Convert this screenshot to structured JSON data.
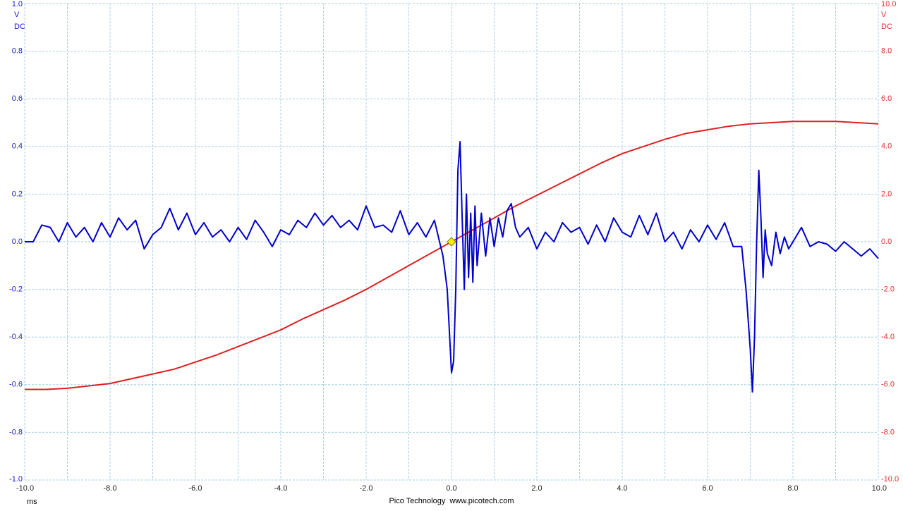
{
  "chart_data": {
    "type": "line",
    "x_unit": "ms",
    "y_unit": "V",
    "y_coupling": "DC",
    "y2_unit": "V",
    "y2_coupling": "DC",
    "footer": "Pico Technology  www.picotech.com",
    "grid": true,
    "xlim": [
      -10,
      10
    ],
    "xticks": [
      {
        "value": -10,
        "label": "-10.0"
      },
      {
        "value": -8,
        "label": "-8.0"
      },
      {
        "value": -6,
        "label": "-6.0"
      },
      {
        "value": -4,
        "label": "-4.0"
      },
      {
        "value": -2,
        "label": "-2.0"
      },
      {
        "value": 0,
        "label": "0.0"
      },
      {
        "value": 2,
        "label": "2.0"
      },
      {
        "value": 4,
        "label": "4.0"
      },
      {
        "value": 6,
        "label": "6.0"
      },
      {
        "value": 8,
        "label": "8.0"
      },
      {
        "value": 10,
        "label": "10.0"
      }
    ],
    "ylim": [
      -1,
      1
    ],
    "yticks": [
      {
        "value": -1,
        "label": "-1.0"
      },
      -0.8,
      -0.6,
      -0.4,
      -0.2,
      {
        "value": 0,
        "label": "0.0"
      },
      0.2,
      0.4,
      0.6,
      0.8,
      {
        "value": 1,
        "label": "1.0"
      }
    ],
    "y2lim": [
      -10,
      10
    ],
    "y2ticks": [
      {
        "value": -10,
        "label": "-10.0"
      },
      {
        "value": -8,
        "label": "-8.0"
      },
      {
        "value": -6,
        "label": "-6.0"
      },
      {
        "value": -4,
        "label": "-4.0"
      },
      {
        "value": -2,
        "label": "-2.0"
      },
      {
        "value": 0,
        "label": "0.0"
      },
      {
        "value": 2,
        "label": "2.0"
      },
      {
        "value": 4,
        "label": "4.0"
      },
      {
        "value": 6,
        "label": "6.0"
      },
      {
        "value": 8,
        "label": "8.0"
      },
      {
        "value": 10,
        "label": "10.0"
      }
    ],
    "trigger_x": 0,
    "trigger_y": 0,
    "trigger_color": "#f0f000",
    "y_color": "#1a1ac8",
    "y2_color": "#e03030",
    "series": [
      {
        "color": "#e02020",
        "axis": "y2",
        "x": [
          -10,
          -9.5,
          -9,
          -8.5,
          -8,
          -7.5,
          -7,
          -6.5,
          -6,
          -5.5,
          -5,
          -4.5,
          -4,
          -3.5,
          -3,
          -2.5,
          -2,
          -1.5,
          -1,
          -0.5,
          0,
          0.5,
          1,
          1.5,
          2,
          2.5,
          3,
          3.5,
          4,
          4.5,
          5,
          5.5,
          6,
          6.5,
          7,
          7.5,
          8,
          8.5,
          9,
          9.5,
          10
        ],
        "values": [
          -6.2,
          -6.2,
          -6.15,
          -6.05,
          -5.95,
          -5.75,
          -5.55,
          -5.35,
          -5.05,
          -4.75,
          -4.4,
          -4.05,
          -3.7,
          -3.25,
          -2.85,
          -2.45,
          -2.0,
          -1.5,
          -1.0,
          -0.5,
          0.0,
          0.5,
          1.0,
          1.5,
          1.95,
          2.4,
          2.85,
          3.3,
          3.7,
          4.0,
          4.3,
          4.55,
          4.7,
          4.85,
          4.95,
          5.0,
          5.05,
          5.05,
          5.05,
          5.0,
          4.95
        ]
      },
      {
        "color": "#0000cc",
        "axis": "y",
        "x": [
          -10,
          -9.8,
          -9.6,
          -9.4,
          -9.2,
          -9.0,
          -8.8,
          -8.6,
          -8.4,
          -8.2,
          -8.0,
          -7.8,
          -7.6,
          -7.4,
          -7.2,
          -7.0,
          -6.8,
          -6.6,
          -6.4,
          -6.2,
          -6.0,
          -5.8,
          -5.6,
          -5.4,
          -5.2,
          -5.0,
          -4.8,
          -4.6,
          -4.4,
          -4.2,
          -4.0,
          -3.8,
          -3.6,
          -3.4,
          -3.2,
          -3.0,
          -2.8,
          -2.6,
          -2.4,
          -2.2,
          -2.0,
          -1.8,
          -1.6,
          -1.4,
          -1.2,
          -1.0,
          -0.8,
          -0.6,
          -0.4,
          -0.2,
          -0.1,
          0.0,
          0.05,
          0.1,
          0.15,
          0.2,
          0.25,
          0.3,
          0.35,
          0.4,
          0.45,
          0.5,
          0.55,
          0.6,
          0.7,
          0.8,
          0.9,
          1.0,
          1.1,
          1.2,
          1.3,
          1.4,
          1.5,
          1.6,
          1.8,
          2.0,
          2.2,
          2.4,
          2.6,
          2.8,
          3.0,
          3.2,
          3.4,
          3.6,
          3.8,
          4.0,
          4.2,
          4.4,
          4.6,
          4.8,
          5.0,
          5.2,
          5.4,
          5.6,
          5.8,
          6.0,
          6.2,
          6.4,
          6.6,
          6.8,
          6.9,
          7.0,
          7.05,
          7.1,
          7.15,
          7.2,
          7.25,
          7.3,
          7.35,
          7.4,
          7.5,
          7.6,
          7.7,
          7.8,
          7.9,
          8.0,
          8.2,
          8.4,
          8.6,
          8.8,
          9.0,
          9.2,
          9.4,
          9.6,
          9.8,
          10.0
        ],
        "values": [
          0.0,
          0.0,
          0.07,
          0.06,
          0.0,
          0.08,
          0.02,
          0.06,
          0.0,
          0.08,
          0.02,
          0.1,
          0.05,
          0.09,
          -0.03,
          0.03,
          0.06,
          0.14,
          0.05,
          0.12,
          0.03,
          0.08,
          0.02,
          0.05,
          0.0,
          0.06,
          0.01,
          0.09,
          0.04,
          -0.02,
          0.05,
          0.03,
          0.09,
          0.06,
          0.12,
          0.07,
          0.11,
          0.06,
          0.09,
          0.05,
          0.15,
          0.06,
          0.07,
          0.04,
          0.13,
          0.03,
          0.08,
          0.02,
          0.09,
          -0.06,
          -0.2,
          -0.55,
          -0.5,
          -0.2,
          0.3,
          0.42,
          0.1,
          -0.2,
          0.2,
          -0.15,
          0.12,
          -0.17,
          0.15,
          -0.1,
          0.12,
          -0.06,
          0.1,
          -0.02,
          0.1,
          0.02,
          0.13,
          0.16,
          0.06,
          0.02,
          0.06,
          -0.03,
          0.04,
          0.0,
          0.08,
          0.04,
          0.06,
          -0.01,
          0.07,
          0.0,
          0.1,
          0.04,
          0.02,
          0.11,
          0.03,
          0.12,
          0.0,
          0.04,
          -0.03,
          0.05,
          0.0,
          0.07,
          0.01,
          0.08,
          -0.02,
          -0.02,
          -0.2,
          -0.45,
          -0.63,
          -0.4,
          0.0,
          0.3,
          0.1,
          -0.15,
          0.05,
          -0.05,
          -0.1,
          0.04,
          -0.05,
          0.02,
          -0.03,
          0.0,
          0.06,
          -0.02,
          0.0,
          -0.01,
          -0.04,
          0.0,
          -0.03,
          -0.06,
          -0.03,
          -0.07
        ]
      }
    ]
  }
}
